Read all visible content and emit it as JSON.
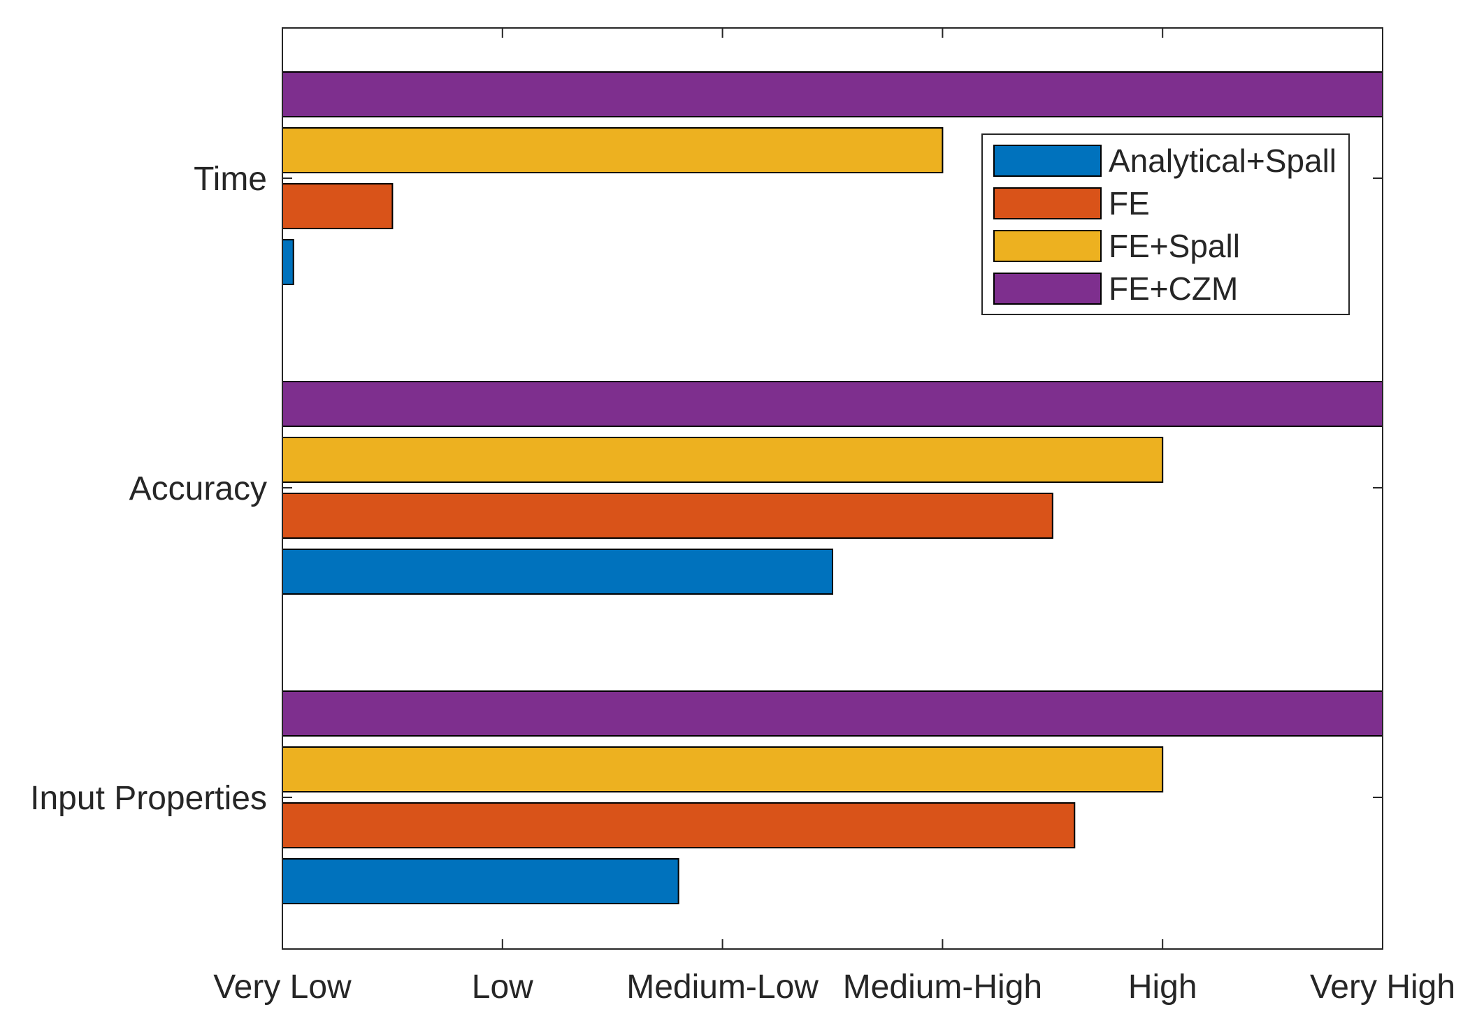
{
  "chart_data": {
    "type": "bar",
    "orientation": "horizontal",
    "title": "",
    "xlabel": "",
    "ylabel": "",
    "xlim": [
      0,
      5
    ],
    "x_ticks": [
      {
        "value": 0,
        "label": "Very Low"
      },
      {
        "value": 1,
        "label": "Low"
      },
      {
        "value": 2,
        "label": "Medium-Low"
      },
      {
        "value": 3,
        "label": "Medium-High"
      },
      {
        "value": 4,
        "label": "High"
      },
      {
        "value": 5,
        "label": "Very High"
      }
    ],
    "categories": [
      "Time",
      "Accuracy",
      "Input Properties"
    ],
    "series": [
      {
        "name": "Analytical+Spall",
        "color": "#0072BD",
        "values": [
          0.05,
          2.5,
          1.8
        ]
      },
      {
        "name": "FE",
        "color": "#D95319",
        "values": [
          0.5,
          3.5,
          3.6
        ]
      },
      {
        "name": "FE+Spall",
        "color": "#EDB120",
        "values": [
          3.0,
          4.0,
          4.0
        ]
      },
      {
        "name": "FE+CZM",
        "color": "#7E2F8E",
        "values": [
          5.0,
          5.0,
          5.0
        ]
      }
    ],
    "legend_position": "top-right",
    "grid": false
  }
}
